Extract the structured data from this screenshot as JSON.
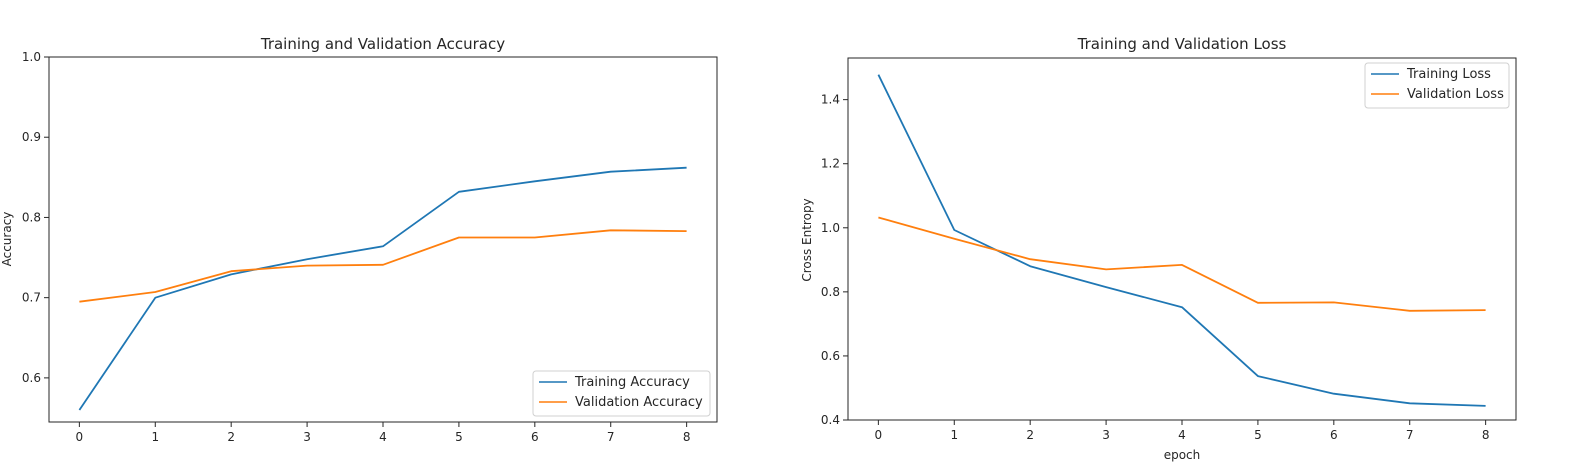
{
  "chart_data": [
    {
      "type": "line",
      "title": "Training and Validation Accuracy",
      "xlabel": "",
      "ylabel": "Accuracy",
      "x": [
        0,
        1,
        2,
        3,
        4,
        5,
        6,
        7,
        8
      ],
      "xlim": [
        -0.4,
        8.4
      ],
      "ylim": [
        0.545,
        1.0
      ],
      "xticks": [
        0,
        1,
        2,
        3,
        4,
        5,
        6,
        7,
        8
      ],
      "yticks": [
        0.6,
        0.7,
        0.8,
        0.9,
        1.0
      ],
      "ytick_labels": [
        "0.6",
        "0.7",
        "0.8",
        "0.9",
        "1.0"
      ],
      "grid": false,
      "legend_position": "lower right",
      "series": [
        {
          "name": "Training Accuracy",
          "color": "#1f77b4",
          "values": [
            0.56,
            0.7,
            0.729,
            0.748,
            0.764,
            0.832,
            0.845,
            0.857,
            0.862
          ]
        },
        {
          "name": "Validation Accuracy",
          "color": "#ff7f0e",
          "values": [
            0.695,
            0.707,
            0.733,
            0.74,
            0.741,
            0.775,
            0.775,
            0.784,
            0.783
          ]
        }
      ]
    },
    {
      "type": "line",
      "title": "Training and Validation Loss",
      "xlabel": "epoch",
      "ylabel": "Cross Entropy",
      "x": [
        0,
        1,
        2,
        3,
        4,
        5,
        6,
        7,
        8
      ],
      "xlim": [
        -0.4,
        8.4
      ],
      "ylim": [
        0.4,
        1.53
      ],
      "xticks": [
        0,
        1,
        2,
        3,
        4,
        5,
        6,
        7,
        8
      ],
      "yticks": [
        0.4,
        0.6,
        0.8,
        1.0,
        1.2,
        1.4
      ],
      "ytick_labels": [
        "0.4",
        "0.6",
        "0.8",
        "1.0",
        "1.2",
        "1.4"
      ],
      "grid": false,
      "legend_position": "upper right",
      "series": [
        {
          "name": "Training Loss",
          "color": "#1f77b4",
          "values": [
            1.478,
            0.993,
            0.88,
            0.815,
            0.752,
            0.537,
            0.482,
            0.452,
            0.444
          ]
        },
        {
          "name": "Validation Loss",
          "color": "#ff7f0e",
          "values": [
            1.032,
            0.966,
            0.902,
            0.87,
            0.884,
            0.766,
            0.767,
            0.741,
            0.743
          ]
        }
      ]
    }
  ]
}
